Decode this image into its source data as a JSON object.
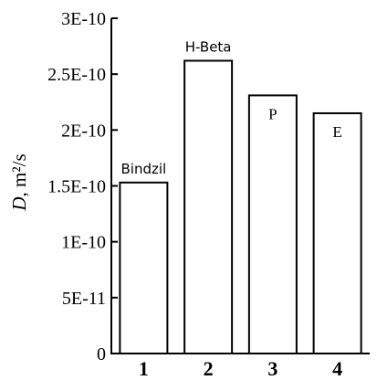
{
  "chart_data": {
    "type": "bar",
    "categories": [
      "1",
      "2",
      "3",
      "4"
    ],
    "values": [
      1.53e-10,
      2.62e-10,
      2.31e-10,
      2.15e-10
    ],
    "bar_labels": [
      "Bindzil",
      "H-Beta",
      "P",
      "E"
    ],
    "ylabel_italic": "D",
    "ylabel_rest": ", m²/s",
    "ylim": [
      0,
      3e-10
    ],
    "yticks": [
      0,
      5e-11,
      1e-10,
      1.5e-10,
      2e-10,
      2.5e-10,
      3e-10
    ],
    "ytick_labels": [
      "0",
      "5E-11",
      "1E-10",
      "1.5E-10",
      "2E-10",
      "2.5E-10",
      "3E-10"
    ],
    "grid": false,
    "bar_fill": "#ffffff",
    "bar_stroke": "#000000"
  }
}
